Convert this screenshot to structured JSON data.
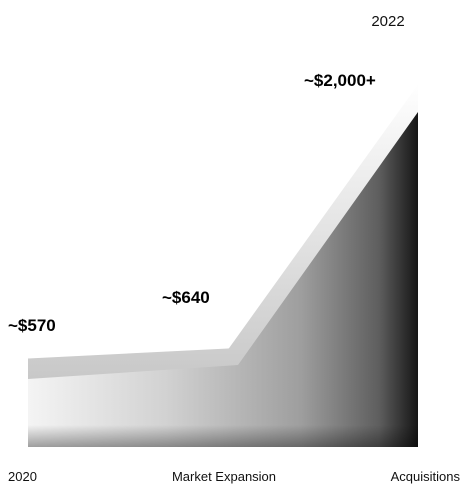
{
  "chart_data": {
    "type": "area",
    "title": "",
    "top_label": "2022",
    "categories": [
      "2020",
      "Market Expansion",
      "Acquisitions"
    ],
    "values": [
      570,
      640,
      2000
    ],
    "value_labels": [
      "~$570",
      "~$640",
      "~$2,000+"
    ],
    "grid": false,
    "legend": "none",
    "colors": {
      "fill_light": "#f4f4f4",
      "fill_dark": "#151515",
      "edge": "#fdfdfd"
    }
  }
}
